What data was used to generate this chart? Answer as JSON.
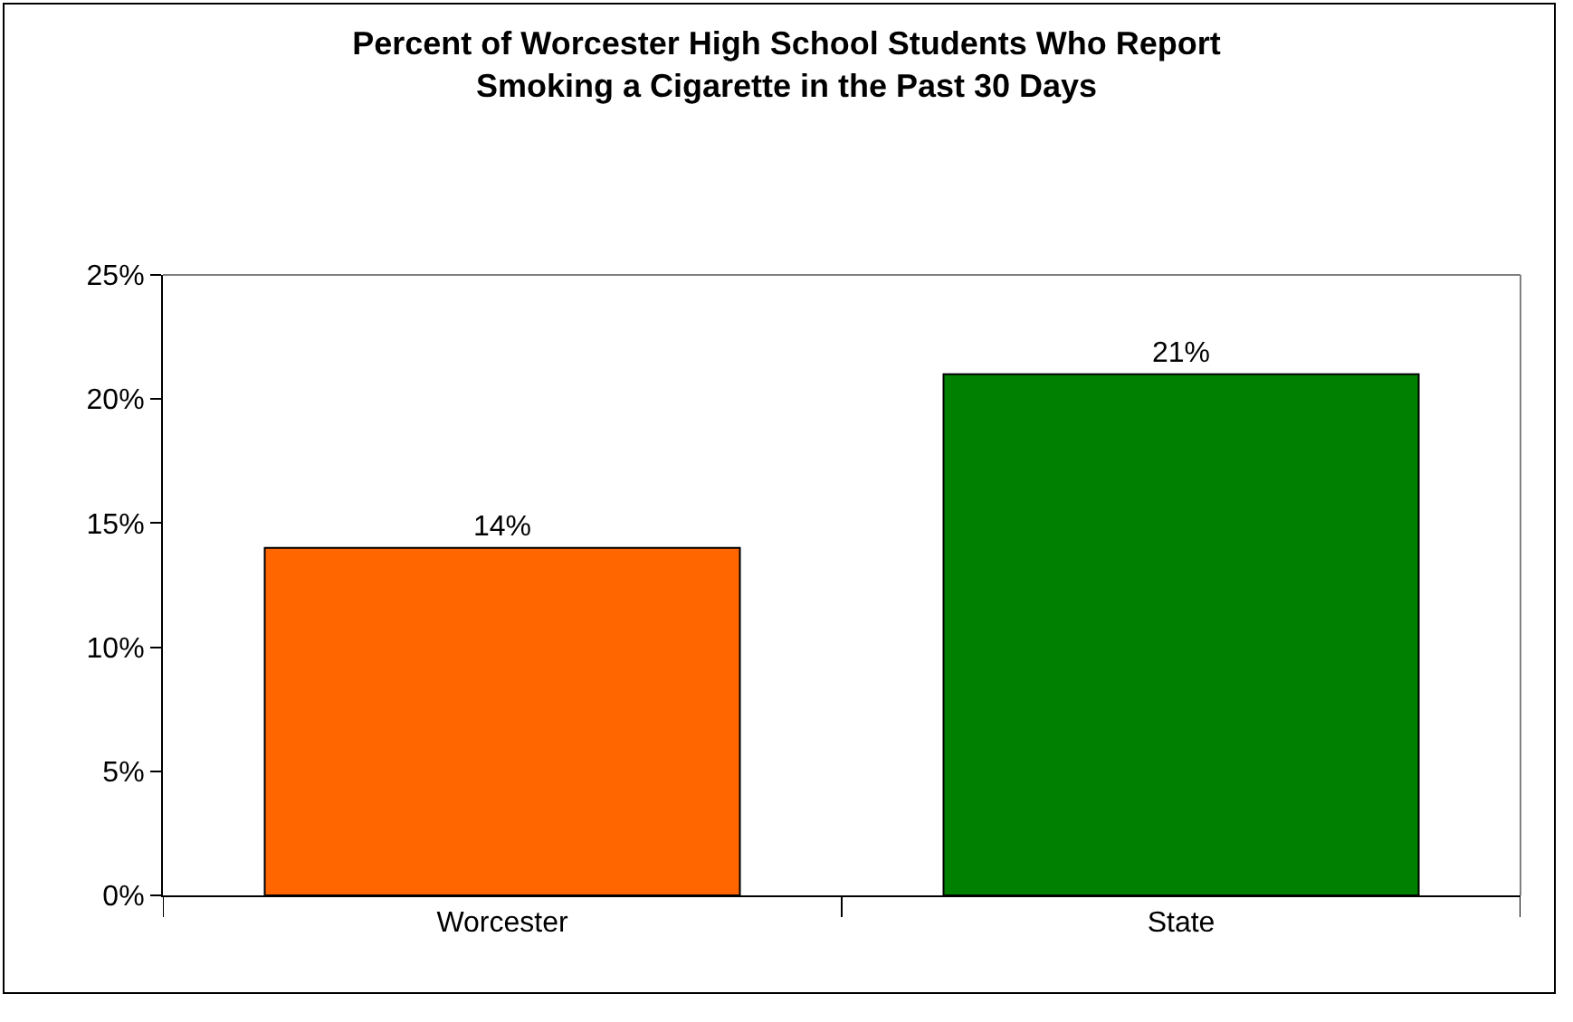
{
  "chart_data": {
    "type": "bar",
    "title": "Percent of Worcester High School Students Who Report\nSmoking a Cigarette in the Past 30 Days",
    "categories": [
      "Worcester",
      "State"
    ],
    "series": [
      {
        "colors": [
          "#ff6600",
          "#008000"
        ],
        "values": [
          14,
          21
        ],
        "value_labels": [
          "14%",
          "21%"
        ]
      }
    ],
    "ylim": [
      0,
      25
    ],
    "yticks": [
      {
        "value": 0,
        "label": "0%"
      },
      {
        "value": 5,
        "label": "5%"
      },
      {
        "value": 10,
        "label": "10%"
      },
      {
        "value": 15,
        "label": "15%"
      },
      {
        "value": 20,
        "label": "20%"
      },
      {
        "value": 25,
        "label": "25%"
      }
    ],
    "legend": false
  }
}
